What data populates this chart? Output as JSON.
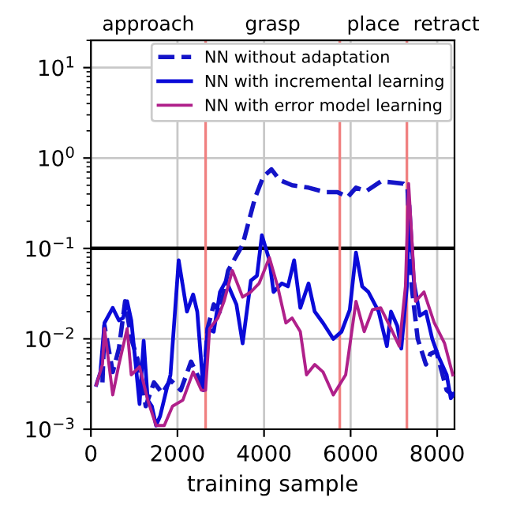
{
  "chart_data": {
    "type": "line",
    "xlabel": "training sample",
    "log": "y",
    "grid": true,
    "legend": "top right",
    "xlim": [
      0,
      8400
    ],
    "xticks": [
      0,
      2000,
      4000,
      6000,
      8000
    ],
    "ylim": [
      0.001,
      20
    ],
    "yticks": [
      {
        "value": 0.001,
        "label": "10$^{−3}$"
      },
      {
        "value": 0.01,
        "label": "10$^{−2}$"
      },
      {
        "value": 0.1,
        "label": "10$^{−1}$"
      },
      {
        "value": 1,
        "label": "10$^{0}$"
      },
      {
        "value": 10,
        "label": "10$^{1}$"
      }
    ],
    "ref_lines": [
      {
        "axis": "y",
        "value": 0.1,
        "color": "#000000"
      },
      {
        "axis": "x",
        "value": 2650,
        "color": "#f08080"
      },
      {
        "axis": "x",
        "value": 5750,
        "color": "#f08080"
      },
      {
        "axis": "x",
        "value": 7300,
        "color": "#f08080"
      }
    ],
    "annotations": [
      "approach",
      "grasp",
      "place",
      "retract"
    ],
    "series": [
      {
        "name": "NN without adaptation",
        "color": "#1414c8",
        "line_style": "dashed",
        "x": [
          267,
          314,
          505,
          647,
          790,
          933,
          1076,
          1267,
          1457,
          1648,
          1838,
          2076,
          2314,
          2457,
          2600,
          2695,
          2838,
          2981,
          3171,
          3505,
          3790,
          3981,
          4171,
          4362,
          4648,
          5028,
          5410,
          5695,
          5933,
          6124,
          6362,
          6695,
          6933,
          7219,
          7314,
          7410,
          7550,
          7740,
          7840,
          7980,
          8219,
          8360
        ],
        "values": [
          0.0033,
          0.014,
          0.0043,
          0.0078,
          0.026,
          0.01,
          0.006,
          0.0018,
          0.0033,
          0.0025,
          0.0035,
          0.0027,
          0.0056,
          0.004,
          0.0029,
          0.013,
          0.024,
          0.02,
          0.057,
          0.11,
          0.36,
          0.62,
          0.75,
          0.57,
          0.5,
          0.47,
          0.42,
          0.42,
          0.37,
          0.47,
          0.43,
          0.55,
          0.54,
          0.52,
          0.47,
          0.038,
          0.01,
          0.0052,
          0.0068,
          0.0073,
          0.0027,
          0.0024
        ]
      },
      {
        "name": "NN with incremental learning",
        "color": "#0a0ad8",
        "line_style": "solid",
        "x": [
          124,
          219,
          314,
          505,
          647,
          743,
          838,
          933,
          1028,
          1124,
          1219,
          1314,
          1409,
          1505,
          1600,
          1743,
          1838,
          2028,
          2219,
          2362,
          2457,
          2600,
          2695,
          2838,
          2981,
          3124,
          3362,
          3505,
          3695,
          3838,
          3950,
          4124,
          4219,
          4410,
          4552,
          4695,
          4838,
          5028,
          5171,
          5362,
          5600,
          5790,
          5981,
          6124,
          6267,
          6410,
          6648,
          6838,
          6933,
          7076,
          7171,
          7300,
          7360,
          7460,
          7600,
          7740,
          7886,
          8029,
          8219,
          8314,
          8400
        ],
        "values": [
          0.0031,
          0.0043,
          0.015,
          0.022,
          0.016,
          0.017,
          0.026,
          0.016,
          0.0056,
          0.0019,
          0.0095,
          0.0021,
          0.0018,
          0.0011,
          0.0014,
          0.0027,
          0.004,
          0.074,
          0.02,
          0.031,
          0.02,
          0.0027,
          0.013,
          0.012,
          0.033,
          0.044,
          0.024,
          0.0089,
          0.044,
          0.05,
          0.14,
          0.074,
          0.033,
          0.041,
          0.038,
          0.074,
          0.022,
          0.041,
          0.02,
          0.015,
          0.01,
          0.012,
          0.021,
          0.09,
          0.038,
          0.033,
          0.02,
          0.0083,
          0.02,
          0.014,
          0.0078,
          0.038,
          0.3,
          0.044,
          0.018,
          0.02,
          0.01,
          0.0064,
          0.004,
          0.0022,
          0.0025
        ]
      },
      {
        "name": "NN with error model learning",
        "color": "#b0208a",
        "line_style": "solid",
        "x": [
          124,
          267,
          314,
          505,
          647,
          838,
          933,
          1124,
          1314,
          1505,
          1695,
          1886,
          2124,
          2362,
          2552,
          2648,
          2743,
          2933,
          3076,
          3267,
          3505,
          3695,
          3886,
          4124,
          4314,
          4505,
          4648,
          4838,
          4981,
          5171,
          5362,
          5600,
          5886,
          6124,
          6314,
          6505,
          6695,
          6933,
          7124,
          7267,
          7340,
          7500,
          7695,
          7933,
          8171,
          8360
        ],
        "values": [
          0.0031,
          0.0052,
          0.013,
          0.0024,
          0.0052,
          0.013,
          0.004,
          0.0049,
          0.0021,
          0.0011,
          0.0011,
          0.0018,
          0.0021,
          0.0043,
          0.0027,
          0.0027,
          0.013,
          0.017,
          0.026,
          0.057,
          0.029,
          0.033,
          0.041,
          0.079,
          0.038,
          0.015,
          0.017,
          0.012,
          0.004,
          0.0052,
          0.0043,
          0.0024,
          0.004,
          0.026,
          0.012,
          0.021,
          0.022,
          0.013,
          0.0083,
          0.038,
          0.52,
          0.026,
          0.033,
          0.015,
          0.0089,
          0.004
        ]
      }
    ]
  }
}
